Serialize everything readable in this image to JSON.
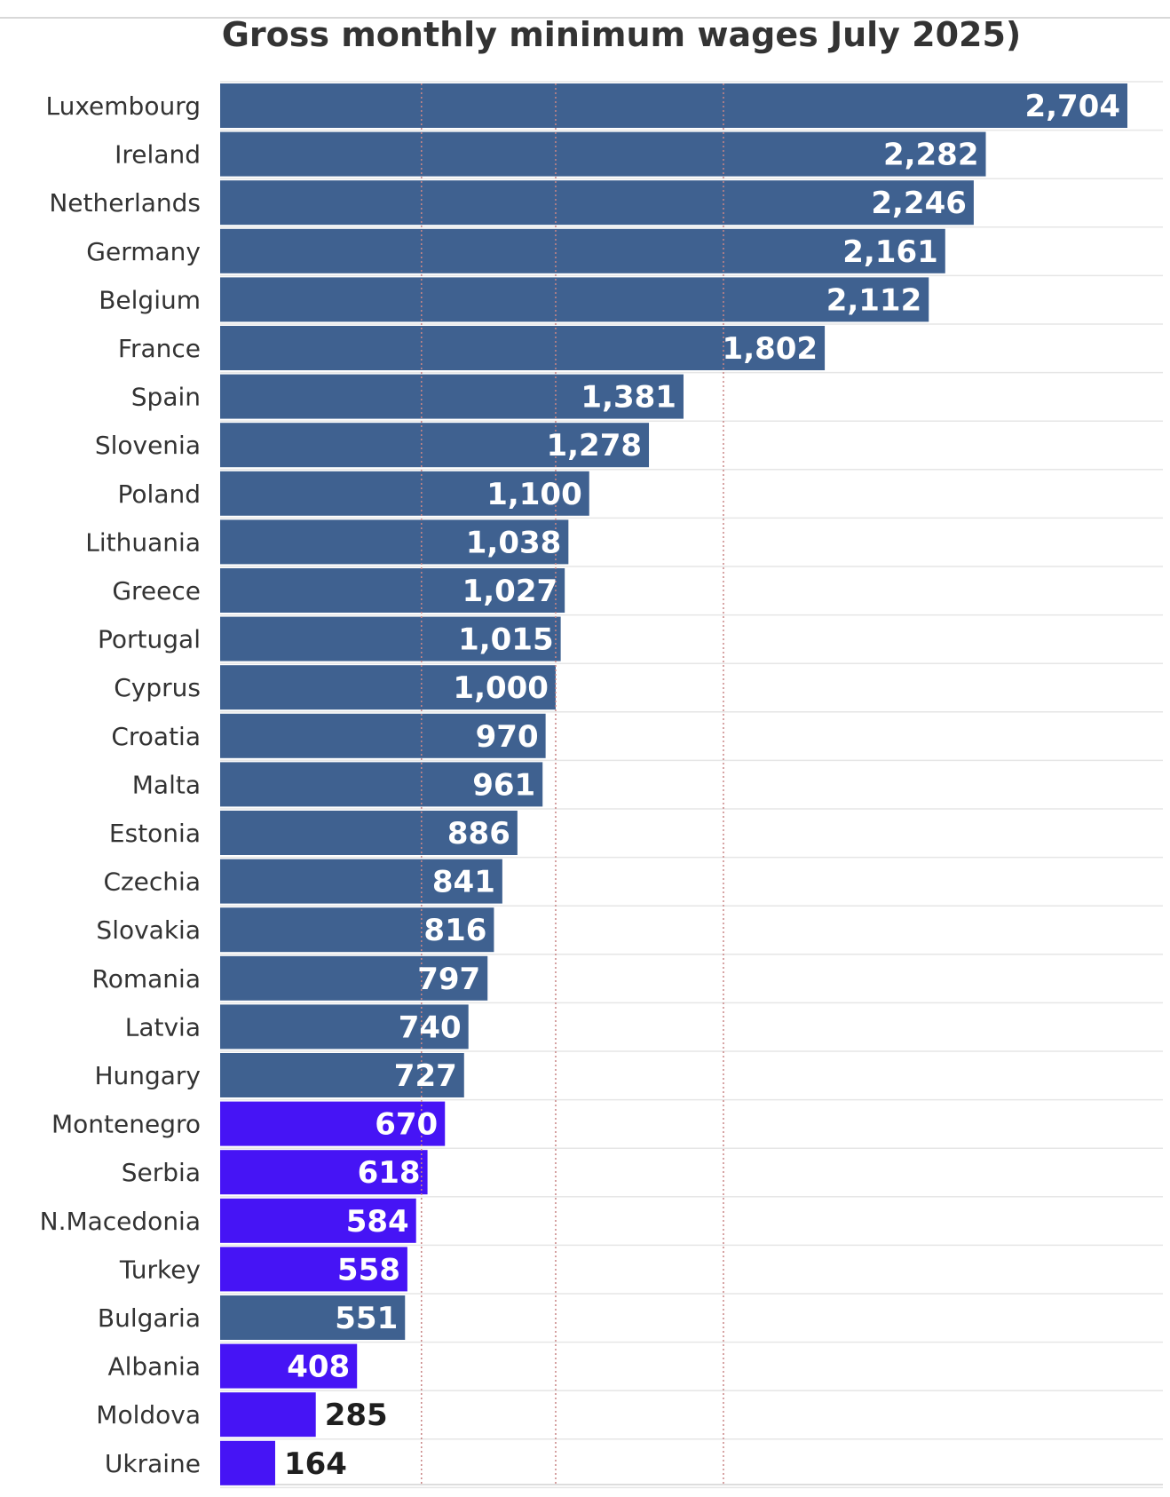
{
  "chart_data": {
    "type": "bar",
    "orientation": "horizontal",
    "title": "Gross monthly minimum wages July 2025)",
    "categories": [
      "Luxembourg",
      "Ireland",
      "Netherlands",
      "Germany",
      "Belgium",
      "France",
      "Spain",
      "Slovenia",
      "Poland",
      "Lithuania",
      "Greece",
      "Portugal",
      "Cyprus",
      "Croatia",
      "Malta",
      "Estonia",
      "Czechia",
      "Slovakia",
      "Romania",
      "Latvia",
      "Hungary",
      "Montenegro",
      "Serbia",
      "N.Macedonia",
      "Turkey",
      "Bulgaria",
      "Albania",
      "Moldova",
      "Ukraine"
    ],
    "values": [
      2704,
      2282,
      2246,
      2161,
      2112,
      1802,
      1381,
      1278,
      1100,
      1038,
      1027,
      1015,
      1000,
      970,
      961,
      886,
      841,
      816,
      797,
      740,
      727,
      670,
      618,
      584,
      558,
      551,
      408,
      285,
      164
    ],
    "value_labels": [
      "2,704",
      "2,282",
      "2,246",
      "2,161",
      "2,112",
      "1,802",
      "1,381",
      "1,278",
      "1,100",
      "1,038",
      "1,027",
      "1,015",
      "1,000",
      "970",
      "961",
      "886",
      "841",
      "816",
      "797",
      "740",
      "727",
      "670",
      "618",
      "584",
      "558",
      "551",
      "408",
      "285",
      "164"
    ],
    "highlighted": [
      false,
      false,
      false,
      false,
      false,
      false,
      false,
      false,
      false,
      false,
      false,
      false,
      false,
      false,
      false,
      false,
      false,
      false,
      false,
      false,
      false,
      true,
      true,
      true,
      true,
      false,
      true,
      true,
      true
    ],
    "xlim": [
      0,
      2704
    ],
    "grid": true,
    "reference_lines": [
      600,
      1000,
      1500
    ],
    "colors": {
      "bar": "#3f6190",
      "bar_highlight": "#4614f5",
      "reference_line": "#c98585",
      "grid": "#e6e6e6",
      "label_inside": "#ffffff",
      "label_outside": "#1f1f1f"
    }
  }
}
